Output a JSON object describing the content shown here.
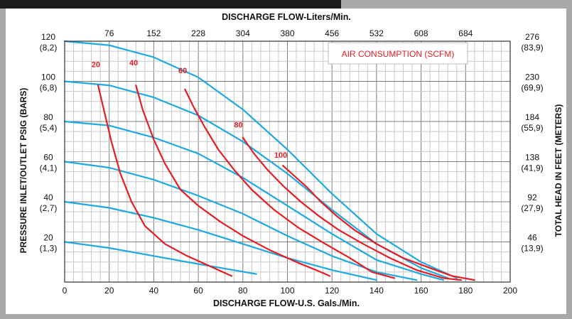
{
  "chart_data": {
    "type": "line",
    "title": "",
    "xlabel": "DISCHARGE FLOW-U.S. Gals./Min.",
    "x2label": "DISCHARGE FLOW-Liters/Min.",
    "ylabel": "PRESSURE INLET/OUTLET PSIG (BARS)",
    "y2label": "TOTAL HEAD IN FEET (METERS)",
    "xlim": [
      0,
      200
    ],
    "ylim": [
      0,
      120
    ],
    "grid": true,
    "x_ticks": [
      "0",
      "20",
      "40",
      "60",
      "80",
      "100",
      "120",
      "140",
      "160",
      "180",
      "200"
    ],
    "x2_ticks": [
      "76",
      "152",
      "228",
      "304",
      "380",
      "456",
      "532",
      "608",
      "684"
    ],
    "y_ticks": [
      {
        "psi": "20",
        "bar": "(1,3)"
      },
      {
        "psi": "40",
        "bar": "(2,7)"
      },
      {
        "psi": "60",
        "bar": "(4,1)"
      },
      {
        "psi": "80",
        "bar": "(5,4)"
      },
      {
        "psi": "100",
        "bar": "(6,8)"
      },
      {
        "psi": "120",
        "bar": "(8,2)"
      }
    ],
    "y2_ticks": [
      {
        "ft": "46",
        "m": "(13,9)"
      },
      {
        "ft": "92",
        "m": "(27,9)"
      },
      {
        "ft": "138",
        "m": "(41,9)"
      },
      {
        "ft": "184",
        "m": "(55,9)"
      },
      {
        "ft": "230",
        "m": "(69,9)"
      },
      {
        "ft": "276",
        "m": "(83,9)"
      }
    ],
    "legend": "AIR CONSUMPTION (SCFM)",
    "legend_color": "#e31e24",
    "pressure_color": "#1ea9e1",
    "air_color": "#e31e24",
    "pressure_curves": [
      {
        "points": [
          [
            0,
            120
          ],
          [
            20,
            118
          ],
          [
            40,
            112
          ],
          [
            60,
            102
          ],
          [
            80,
            86
          ],
          [
            100,
            66
          ],
          [
            120,
            44
          ],
          [
            140,
            24
          ],
          [
            160,
            10
          ],
          [
            176,
            2
          ]
        ]
      },
      {
        "points": [
          [
            0,
            100
          ],
          [
            20,
            98
          ],
          [
            40,
            92
          ],
          [
            60,
            83
          ],
          [
            80,
            70
          ],
          [
            100,
            54
          ],
          [
            120,
            36
          ],
          [
            140,
            19
          ],
          [
            160,
            7
          ],
          [
            172,
            2
          ]
        ]
      },
      {
        "points": [
          [
            0,
            80
          ],
          [
            20,
            78
          ],
          [
            40,
            72
          ],
          [
            60,
            64
          ],
          [
            80,
            52
          ],
          [
            100,
            38
          ],
          [
            120,
            24
          ],
          [
            140,
            11
          ],
          [
            160,
            4
          ],
          [
            170,
            1
          ]
        ]
      },
      {
        "points": [
          [
            0,
            60
          ],
          [
            20,
            57
          ],
          [
            40,
            51
          ],
          [
            60,
            43
          ],
          [
            80,
            34
          ],
          [
            100,
            23
          ],
          [
            120,
            13
          ],
          [
            140,
            5
          ],
          [
            158,
            1
          ]
        ]
      },
      {
        "points": [
          [
            0,
            40
          ],
          [
            20,
            37
          ],
          [
            40,
            32
          ],
          [
            60,
            26
          ],
          [
            80,
            19
          ],
          [
            100,
            12
          ],
          [
            120,
            6
          ],
          [
            140,
            1
          ]
        ]
      },
      {
        "points": [
          [
            0,
            20
          ],
          [
            20,
            17
          ],
          [
            40,
            13
          ],
          [
            60,
            9
          ],
          [
            86,
            4
          ]
        ]
      }
    ],
    "air_curves": [
      {
        "label": "20",
        "label_at": [
          14,
          107
        ],
        "points": [
          [
            15,
            98
          ],
          [
            18,
            84
          ],
          [
            21,
            70
          ],
          [
            25,
            54
          ],
          [
            30,
            40
          ],
          [
            36,
            28
          ],
          [
            45,
            19
          ],
          [
            55,
            13
          ],
          [
            65,
            8
          ],
          [
            75,
            3
          ]
        ]
      },
      {
        "label": "40",
        "label_at": [
          31,
          108
        ],
        "points": [
          [
            32,
            98
          ],
          [
            35,
            86
          ],
          [
            40,
            71
          ],
          [
            45,
            59
          ],
          [
            52,
            46
          ],
          [
            60,
            38
          ],
          [
            70,
            30
          ],
          [
            80,
            23
          ],
          [
            92,
            16
          ],
          [
            104,
            10
          ],
          [
            115,
            5
          ],
          [
            119,
            3
          ]
        ]
      },
      {
        "label": "60",
        "label_at": [
          53,
          104
        ],
        "points": [
          [
            54,
            96
          ],
          [
            58,
            87
          ],
          [
            63,
            77
          ],
          [
            69,
            66
          ],
          [
            76,
            56
          ],
          [
            84,
            46
          ],
          [
            94,
            36
          ],
          [
            105,
            27
          ],
          [
            117,
            19
          ],
          [
            128,
            12
          ],
          [
            138,
            5
          ],
          [
            148,
            2
          ]
        ]
      },
      {
        "label": "80",
        "label_at": [
          78,
          77
        ],
        "points": [
          [
            80,
            72
          ],
          [
            85,
            64
          ],
          [
            91,
            56
          ],
          [
            98,
            48
          ],
          [
            106,
            40
          ],
          [
            114,
            33
          ],
          [
            123,
            26
          ],
          [
            134,
            19
          ],
          [
            146,
            12
          ],
          [
            158,
            6
          ],
          [
            170,
            2
          ],
          [
            178,
            1
          ]
        ]
      },
      {
        "label": "100",
        "label_at": [
          97,
          62
        ],
        "points": [
          [
            98,
            58
          ],
          [
            103,
            53
          ],
          [
            109,
            47
          ],
          [
            115,
            40
          ],
          [
            122,
            33
          ],
          [
            130,
            26
          ],
          [
            140,
            19
          ],
          [
            152,
            12
          ],
          [
            164,
            7
          ],
          [
            174,
            3
          ],
          [
            184,
            1
          ]
        ]
      }
    ]
  }
}
